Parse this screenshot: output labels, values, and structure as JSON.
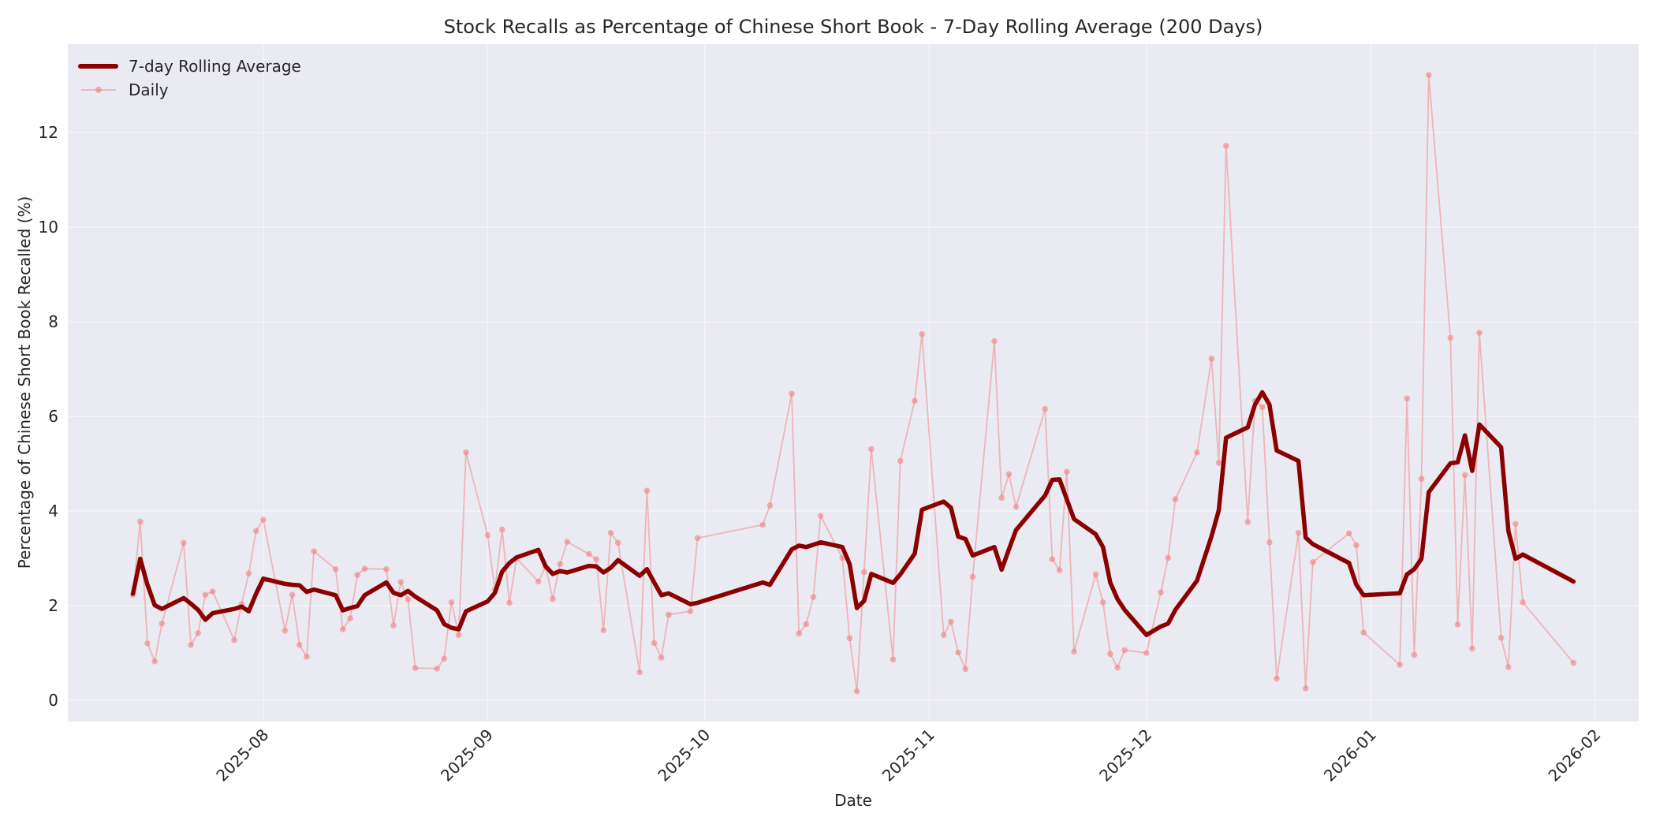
{
  "chart_data": {
    "type": "line",
    "title": "Stock Recalls as Percentage of Chinese Short Book - 7-Day Rolling Average (200 Days)",
    "xlabel": "Date",
    "ylabel": "Percentage of Chinese Short Book Recalled (%)",
    "ylim": [
      -0.45,
      13.87
    ],
    "xlim": [
      "2025-07-05",
      "2026-02-07"
    ],
    "grid": true,
    "legend_position": "upper left",
    "x_ticks": [
      "2025-08",
      "2025-09",
      "2025-10",
      "2025-11",
      "2025-12",
      "2026-01",
      "2026-02"
    ],
    "y_ticks": [
      0,
      2,
      4,
      6,
      8,
      10,
      12
    ],
    "x": [
      "2025-07-14",
      "2025-07-15",
      "2025-07-16",
      "2025-07-17",
      "2025-07-18",
      "2025-07-21",
      "2025-07-22",
      "2025-07-23",
      "2025-07-24",
      "2025-07-25",
      "2025-07-28",
      "2025-07-29",
      "2025-07-30",
      "2025-07-31",
      "2025-08-01",
      "2025-08-04",
      "2025-08-05",
      "2025-08-06",
      "2025-08-07",
      "2025-08-08",
      "2025-08-11",
      "2025-08-12",
      "2025-08-13",
      "2025-08-14",
      "2025-08-15",
      "2025-08-18",
      "2025-08-19",
      "2025-08-20",
      "2025-08-21",
      "2025-08-22",
      "2025-08-25",
      "2025-08-26",
      "2025-08-27",
      "2025-08-28",
      "2025-08-29",
      "2025-09-01",
      "2025-09-02",
      "2025-09-03",
      "2025-09-04",
      "2025-09-05",
      "2025-09-08",
      "2025-09-09",
      "2025-09-10",
      "2025-09-11",
      "2025-09-12",
      "2025-09-15",
      "2025-09-16",
      "2025-09-17",
      "2025-09-18",
      "2025-09-19",
      "2025-09-22",
      "2025-09-23",
      "2025-09-24",
      "2025-09-25",
      "2025-09-26",
      "2025-09-29",
      "2025-09-30",
      "2025-10-09",
      "2025-10-10",
      "2025-10-13",
      "2025-10-14",
      "2025-10-15",
      "2025-10-16",
      "2025-10-17",
      "2025-10-20",
      "2025-10-21",
      "2025-10-22",
      "2025-10-23",
      "2025-10-24",
      "2025-10-27",
      "2025-10-28",
      "2025-10-30",
      "2025-10-31",
      "2025-11-03",
      "2025-11-04",
      "2025-11-05",
      "2025-11-06",
      "2025-11-07",
      "2025-11-10",
      "2025-11-11",
      "2025-11-12",
      "2025-11-13",
      "2025-11-17",
      "2025-11-18",
      "2025-11-19",
      "2025-11-20",
      "2025-11-21",
      "2025-11-24",
      "2025-11-25",
      "2025-11-26",
      "2025-11-27",
      "2025-11-28",
      "2025-12-01",
      "2025-12-03",
      "2025-12-04",
      "2025-12-05",
      "2025-12-08",
      "2025-12-10",
      "2025-12-11",
      "2025-12-12",
      "2025-12-15",
      "2025-12-16",
      "2025-12-17",
      "2025-12-18",
      "2025-12-19",
      "2025-12-22",
      "2025-12-23",
      "2025-12-24",
      "2025-12-29",
      "2025-12-30",
      "2025-12-31",
      "2026-01-05",
      "2026-01-06",
      "2026-01-07",
      "2026-01-08",
      "2026-01-09",
      "2026-01-12",
      "2026-01-13",
      "2026-01-14",
      "2026-01-15",
      "2026-01-16",
      "2026-01-19",
      "2026-01-20",
      "2026-01-21",
      "2026-01-22",
      "2026-01-29"
    ],
    "series": [
      {
        "name": "7-day Rolling Average",
        "color": "#8b0000",
        "values": [
          2.25,
          2.99,
          2.44,
          2.01,
          1.93,
          2.16,
          2.04,
          1.91,
          1.7,
          1.84,
          1.93,
          1.98,
          1.88,
          2.25,
          2.57,
          2.46,
          2.44,
          2.43,
          2.29,
          2.34,
          2.22,
          1.9,
          1.95,
          1.99,
          2.22,
          2.49,
          2.27,
          2.22,
          2.31,
          2.19,
          1.9,
          1.61,
          1.53,
          1.5,
          1.88,
          2.09,
          2.27,
          2.72,
          2.9,
          3.02,
          3.18,
          2.83,
          2.67,
          2.73,
          2.7,
          2.84,
          2.83,
          2.7,
          2.8,
          2.96,
          2.63,
          2.77,
          2.49,
          2.22,
          2.26,
          2.03,
          2.06,
          2.49,
          2.44,
          3.19,
          3.27,
          3.24,
          3.29,
          3.34,
          3.24,
          2.88,
          1.95,
          2.1,
          2.67,
          2.48,
          2.66,
          3.1,
          4.03,
          4.2,
          4.07,
          3.46,
          3.41,
          3.06,
          3.24,
          2.76,
          3.19,
          3.6,
          4.33,
          4.66,
          4.67,
          4.25,
          3.83,
          3.51,
          3.24,
          2.49,
          2.14,
          1.91,
          1.38,
          1.56,
          1.62,
          1.91,
          2.53,
          3.47,
          4.02,
          5.55,
          5.77,
          6.25,
          6.51,
          6.25,
          5.28,
          5.06,
          3.44,
          3.3,
          2.9,
          2.44,
          2.22,
          2.26,
          2.66,
          2.77,
          2.99,
          4.4,
          5.01,
          5.03,
          5.6,
          4.85,
          5.83,
          5.35,
          3.58,
          2.99,
          3.08,
          2.51
        ]
      },
      {
        "name": "Daily",
        "color": "#f08080",
        "values": [
          2.23,
          3.78,
          1.2,
          0.82,
          1.62,
          3.33,
          1.17,
          1.42,
          2.23,
          2.3,
          1.27,
          2.03,
          2.68,
          3.58,
          3.82,
          1.47,
          2.23,
          1.17,
          0.92,
          3.15,
          2.77,
          1.5,
          1.73,
          2.65,
          2.78,
          2.77,
          1.58,
          2.5,
          2.13,
          0.68,
          0.67,
          0.88,
          2.07,
          1.38,
          5.24,
          3.49,
          2.34,
          3.61,
          2.06,
          3.0,
          2.51,
          2.82,
          2.14,
          2.88,
          3.35,
          3.09,
          2.98,
          1.48,
          3.54,
          3.33,
          0.59,
          4.43,
          1.21,
          0.9,
          1.81,
          1.88,
          3.43,
          3.71,
          4.12,
          6.48,
          1.41,
          1.61,
          2.18,
          3.9,
          3.01,
          1.31,
          0.19,
          2.71,
          5.31,
          0.86,
          5.06,
          6.33,
          7.74,
          1.38,
          1.66,
          1.01,
          0.66,
          2.61,
          7.59,
          4.28,
          4.78,
          4.09,
          6.16,
          2.98,
          2.75,
          4.83,
          1.03,
          2.66,
          2.07,
          0.98,
          0.69,
          1.06,
          1.0,
          2.28,
          3.01,
          4.25,
          5.24,
          7.22,
          5.02,
          11.72,
          3.77,
          6.33,
          6.2,
          3.34,
          0.46,
          3.54,
          0.25,
          2.92,
          3.53,
          3.28,
          1.43,
          0.75,
          6.38,
          0.96,
          4.68,
          13.22,
          7.66,
          1.6,
          4.76,
          1.09,
          7.77,
          1.32,
          0.7,
          3.73,
          2.07,
          0.79
        ]
      }
    ]
  },
  "legend": {
    "items": [
      {
        "label": "7-day Rolling Average",
        "color": "#8b0000",
        "style": "thick-line"
      },
      {
        "label": "Daily",
        "color": "#f08080",
        "style": "line-with-dot-marker"
      }
    ]
  },
  "colors": {
    "plot_background": "#eaeaf2",
    "grid": "#f4f4f8",
    "rolling": "#8b0000",
    "daily": "#f08080",
    "text": "#262626"
  }
}
